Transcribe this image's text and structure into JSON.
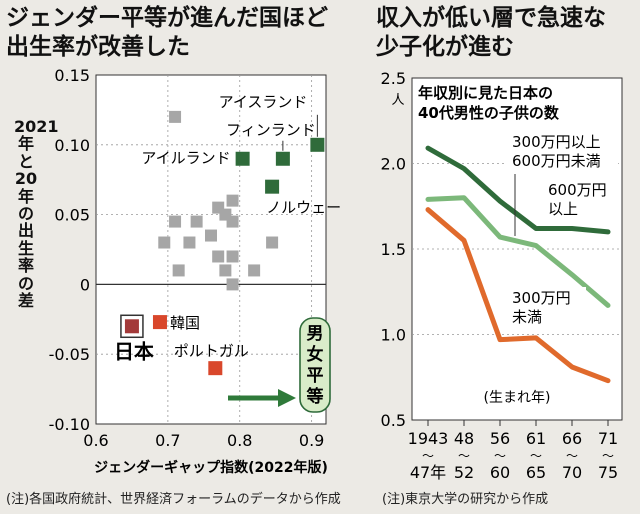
{
  "left_title_lines": [
    "ジェンダー平等が進んだ国ほど",
    "出生率が改善した"
  ],
  "right_title_lines": [
    "収入が低い層で急速な",
    "少子化が進む"
  ],
  "left_note": "(注)各国政府統計、世界経済フォーラムのデータから作成",
  "right_note": "(注)東京大学の研究から作成",
  "colors": {
    "highlight": "#2f6b3a",
    "other": "#a6a6a6",
    "japan": "#a33a3a",
    "korea": "#d9472b",
    "dark_green": "#2f6b3a",
    "light_green": "#7cb87a",
    "orange": "#e06a2c"
  },
  "chart_data": [
    {
      "type": "scatter",
      "xlabel": "ジェンダーギャップ指数(2022年版)",
      "ylabel": "2021年と20年の出生率の差",
      "xlim": [
        0.6,
        0.92
      ],
      "ylim": [
        -0.1,
        0.15
      ],
      "xticks": [
        "0.6",
        "0.7",
        "0.8",
        "0.9"
      ],
      "yticks": [
        "0.15",
        "0.10",
        "0.05",
        "0",
        "-0.05",
        "-0.10"
      ],
      "labeled_points": [
        {
          "name": "アイスランド",
          "x": 0.908,
          "y": 0.1,
          "group": "highlight"
        },
        {
          "name": "フィンランド",
          "x": 0.86,
          "y": 0.09,
          "group": "highlight"
        },
        {
          "name": "アイルランド",
          "x": 0.804,
          "y": 0.09,
          "group": "highlight"
        },
        {
          "name": "ノルウェー",
          "x": 0.845,
          "y": 0.07,
          "group": "highlight"
        },
        {
          "name": "韓国",
          "x": 0.689,
          "y": -0.027,
          "group": "korea"
        },
        {
          "name": "日本",
          "x": 0.65,
          "y": -0.03,
          "group": "japan"
        },
        {
          "name": "ポルトガル",
          "x": 0.766,
          "y": -0.06,
          "group": "korea"
        }
      ],
      "other_points": [
        {
          "x": 0.71,
          "y": 0.12
        },
        {
          "x": 0.71,
          "y": 0.045
        },
        {
          "x": 0.695,
          "y": 0.03
        },
        {
          "x": 0.74,
          "y": 0.045
        },
        {
          "x": 0.73,
          "y": 0.03
        },
        {
          "x": 0.76,
          "y": 0.035
        },
        {
          "x": 0.77,
          "y": 0.055
        },
        {
          "x": 0.78,
          "y": 0.05
        },
        {
          "x": 0.79,
          "y": 0.06
        },
        {
          "x": 0.79,
          "y": 0.045
        },
        {
          "x": 0.77,
          "y": 0.02
        },
        {
          "x": 0.78,
          "y": 0.01
        },
        {
          "x": 0.79,
          "y": 0.0
        },
        {
          "x": 0.82,
          "y": 0.01
        },
        {
          "x": 0.845,
          "y": 0.03
        },
        {
          "x": 0.79,
          "y": 0.02
        },
        {
          "x": 0.715,
          "y": 0.01
        }
      ],
      "annotation": "男女平等"
    },
    {
      "type": "line",
      "title": "年収別に見た日本の 40代男性の子供の数",
      "title_lines": [
        "年収別に見た日本の",
        "40代男性の子供の数"
      ],
      "ylabel": "人",
      "ylim": [
        0.5,
        2.5
      ],
      "yticks": [
        "2.5",
        "2.0",
        "1.5",
        "1.0",
        "0.5"
      ],
      "categories": [
        "1943〜47年",
        "48〜52",
        "56〜60",
        "61〜65",
        "66〜70",
        "71〜75"
      ],
      "xtick_top": [
        "1943",
        "48",
        "56",
        "61",
        "66",
        "71"
      ],
      "xtick_bottom": [
        "47年",
        "52",
        "60",
        "65",
        "70",
        "75"
      ],
      "xlabel": "(生まれ年)",
      "series": [
        {
          "name": "600万円以上",
          "label_lines": [
            "600万円",
            "以上"
          ],
          "color": "#2f6b3a",
          "values": [
            2.09,
            1.97,
            1.78,
            1.62,
            1.62,
            1.6
          ]
        },
        {
          "name": "300万円以上600万円未満",
          "label_lines": [
            "300万円以上",
            "600万円未満"
          ],
          "color": "#7cb87a",
          "values": [
            1.79,
            1.8,
            1.57,
            1.52,
            1.35,
            1.17
          ]
        },
        {
          "name": "300万円未満",
          "label_lines": [
            "300万円",
            "未満"
          ],
          "color": "#e06a2c",
          "values": [
            1.73,
            1.55,
            0.97,
            0.98,
            0.81,
            0.73
          ]
        }
      ]
    }
  ]
}
